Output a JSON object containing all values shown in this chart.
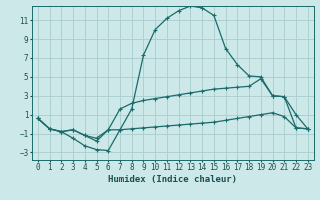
{
  "xlabel": "Humidex (Indice chaleur)",
  "background_color": "#cce8e8",
  "grid_color": "#aacccc",
  "line_color": "#1a6b6b",
  "xlim": [
    -0.5,
    23.5
  ],
  "ylim": [
    -3.8,
    12.5
  ],
  "xticks": [
    0,
    1,
    2,
    3,
    4,
    5,
    6,
    7,
    8,
    9,
    10,
    11,
    12,
    13,
    14,
    15,
    16,
    17,
    18,
    19,
    20,
    21,
    22,
    23
  ],
  "yticks": [
    -3,
    -1,
    1,
    3,
    5,
    7,
    9,
    11
  ],
  "line1_x": [
    0,
    1,
    2,
    3,
    4,
    5,
    6,
    7,
    8,
    9,
    10,
    11,
    12,
    13,
    14,
    15,
    16,
    17,
    18,
    19,
    20,
    21,
    22,
    23
  ],
  "line1_y": [
    0.6,
    -0.5,
    -0.8,
    -1.5,
    -2.3,
    -2.7,
    -2.8,
    -0.6,
    1.6,
    7.3,
    10.0,
    11.2,
    12.0,
    12.5,
    12.3,
    11.5,
    8.0,
    6.3,
    5.1,
    5.0,
    3.0,
    2.9,
    1.0,
    -0.5
  ],
  "line2_x": [
    0,
    1,
    2,
    3,
    4,
    5,
    6,
    7,
    8,
    9,
    10,
    11,
    12,
    13,
    14,
    15,
    16,
    17,
    18,
    19,
    20,
    21,
    22,
    23
  ],
  "line2_y": [
    0.6,
    -0.5,
    -0.8,
    -0.6,
    -1.2,
    -1.8,
    -0.6,
    1.6,
    2.2,
    2.5,
    2.7,
    2.9,
    3.1,
    3.3,
    3.5,
    3.7,
    3.8,
    3.9,
    4.0,
    4.8,
    3.0,
    2.9,
    -0.4,
    -0.5
  ],
  "line3_x": [
    0,
    1,
    2,
    3,
    4,
    5,
    6,
    7,
    8,
    9,
    10,
    11,
    12,
    13,
    14,
    15,
    16,
    17,
    18,
    19,
    20,
    21,
    22,
    23
  ],
  "line3_y": [
    0.6,
    -0.5,
    -0.8,
    -0.6,
    -1.2,
    -1.5,
    -0.6,
    -0.6,
    -0.5,
    -0.4,
    -0.3,
    -0.2,
    -0.1,
    0.0,
    0.1,
    0.2,
    0.4,
    0.6,
    0.8,
    1.0,
    1.2,
    0.8,
    -0.4,
    -0.5
  ]
}
